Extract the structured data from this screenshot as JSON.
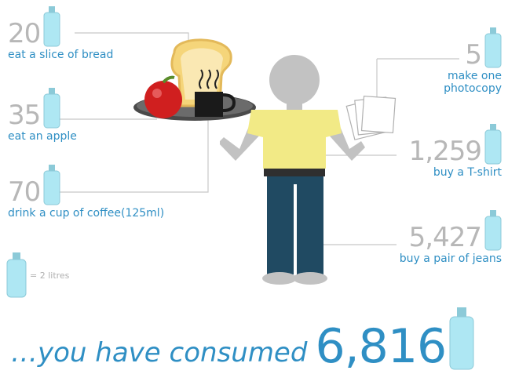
{
  "items_left": [
    {
      "value": "20",
      "label": "eat a slice of bread"
    },
    {
      "value": "35",
      "label": "eat an apple"
    },
    {
      "value": "70",
      "label": "drink a cup of coffee(125ml)"
    }
  ],
  "items_right": [
    {
      "value": "5",
      "label_line1": "make one",
      "label_line2": "photocopy"
    },
    {
      "value": "1,259",
      "label": "buy a T-shirt"
    },
    {
      "value": "5,427",
      "label": "buy a pair of jeans"
    }
  ],
  "legend": {
    "label": "= 2 litres"
  },
  "total": {
    "prefix": "…you have consumed",
    "value": "6,816"
  },
  "colors": {
    "accent_blue": "#2f8fc4",
    "number_gray": "#b7b7b7",
    "bottle": "#aee7f3",
    "shirt": "#f2ea86",
    "jeans": "#204a62",
    "figure_gray": "#c2c2c2"
  }
}
